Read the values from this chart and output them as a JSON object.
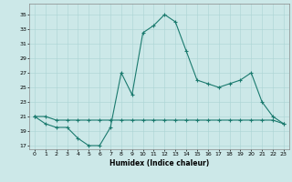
{
  "xlabel": "Humidex (Indice chaleur)",
  "ylabel": "",
  "bg_color": "#cce8e8",
  "line_color": "#1a7a6e",
  "x_ticks": [
    0,
    1,
    2,
    3,
    4,
    5,
    6,
    7,
    8,
    9,
    10,
    11,
    12,
    13,
    14,
    15,
    16,
    17,
    18,
    19,
    20,
    21,
    22,
    23
  ],
  "y_ticks": [
    17,
    19,
    21,
    23,
    25,
    27,
    29,
    31,
    33,
    35
  ],
  "ylim": [
    16.5,
    36.5
  ],
  "xlim": [
    -0.5,
    23.5
  ],
  "curve1_x": [
    0,
    1,
    2,
    3,
    4,
    5,
    6,
    7,
    8,
    9,
    10,
    11,
    12,
    13,
    14,
    15,
    16,
    17,
    18,
    19,
    20,
    21,
    22,
    23
  ],
  "curve1_y": [
    21,
    20,
    19.5,
    19.5,
    18.0,
    17.0,
    17.0,
    19.5,
    27.0,
    24.0,
    32.5,
    33.5,
    35.0,
    34.0,
    30.0,
    26.0,
    25.5,
    25.0,
    25.5,
    26.0,
    27.0,
    23.0,
    21.0,
    20.0
  ],
  "curve2_x": [
    0,
    1,
    2,
    3,
    4,
    5,
    6,
    7,
    8,
    9,
    10,
    11,
    12,
    13,
    14,
    15,
    16,
    17,
    18,
    19,
    20,
    21,
    22,
    23
  ],
  "curve2_y": [
    21,
    21,
    20.5,
    20.5,
    20.5,
    20.5,
    20.5,
    20.5,
    20.5,
    20.5,
    20.5,
    20.5,
    20.5,
    20.5,
    20.5,
    20.5,
    20.5,
    20.5,
    20.5,
    20.5,
    20.5,
    20.5,
    20.5,
    20.0
  ]
}
